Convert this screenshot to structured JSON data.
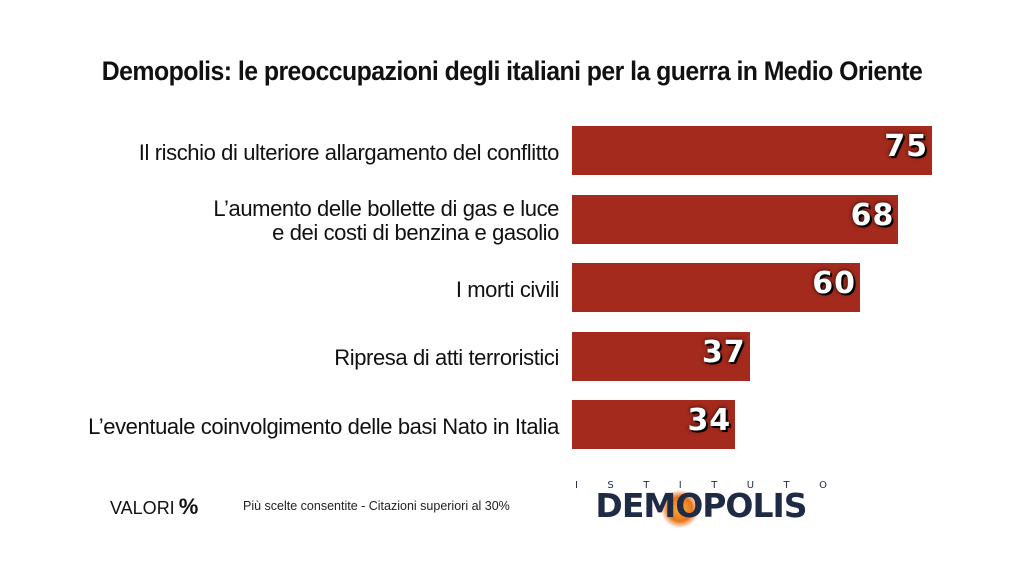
{
  "title": "Demopolis: le preoccupazioni degli italiani per la guerra in Medio Oriente",
  "chart_data": {
    "type": "bar",
    "orientation": "horizontal",
    "title": "Demopolis: le preoccupazioni degli italiani per la guerra in Medio Oriente",
    "categories": [
      "Il rischio di ulteriore allargamento del conflitto",
      "L’aumento delle bollette di gas e luce\ne dei costi di benzina e gasolio",
      "I morti civili",
      "Ripresa di atti terroristici",
      "L’eventuale coinvolgimento delle basi Nato in Italia"
    ],
    "values": [
      75,
      68,
      60,
      37,
      34
    ],
    "xlim": [
      0,
      75
    ],
    "xlabel": "",
    "ylabel": "",
    "bar_color": "#a32a1c"
  },
  "footer": {
    "valori_label": "VALORI",
    "unit": "%",
    "note": "Più scelte consentite - Citazioni superiori al 30%"
  },
  "logo": {
    "top_text": "I S T I T U T O",
    "main_text": "DEMOPOLIS"
  }
}
